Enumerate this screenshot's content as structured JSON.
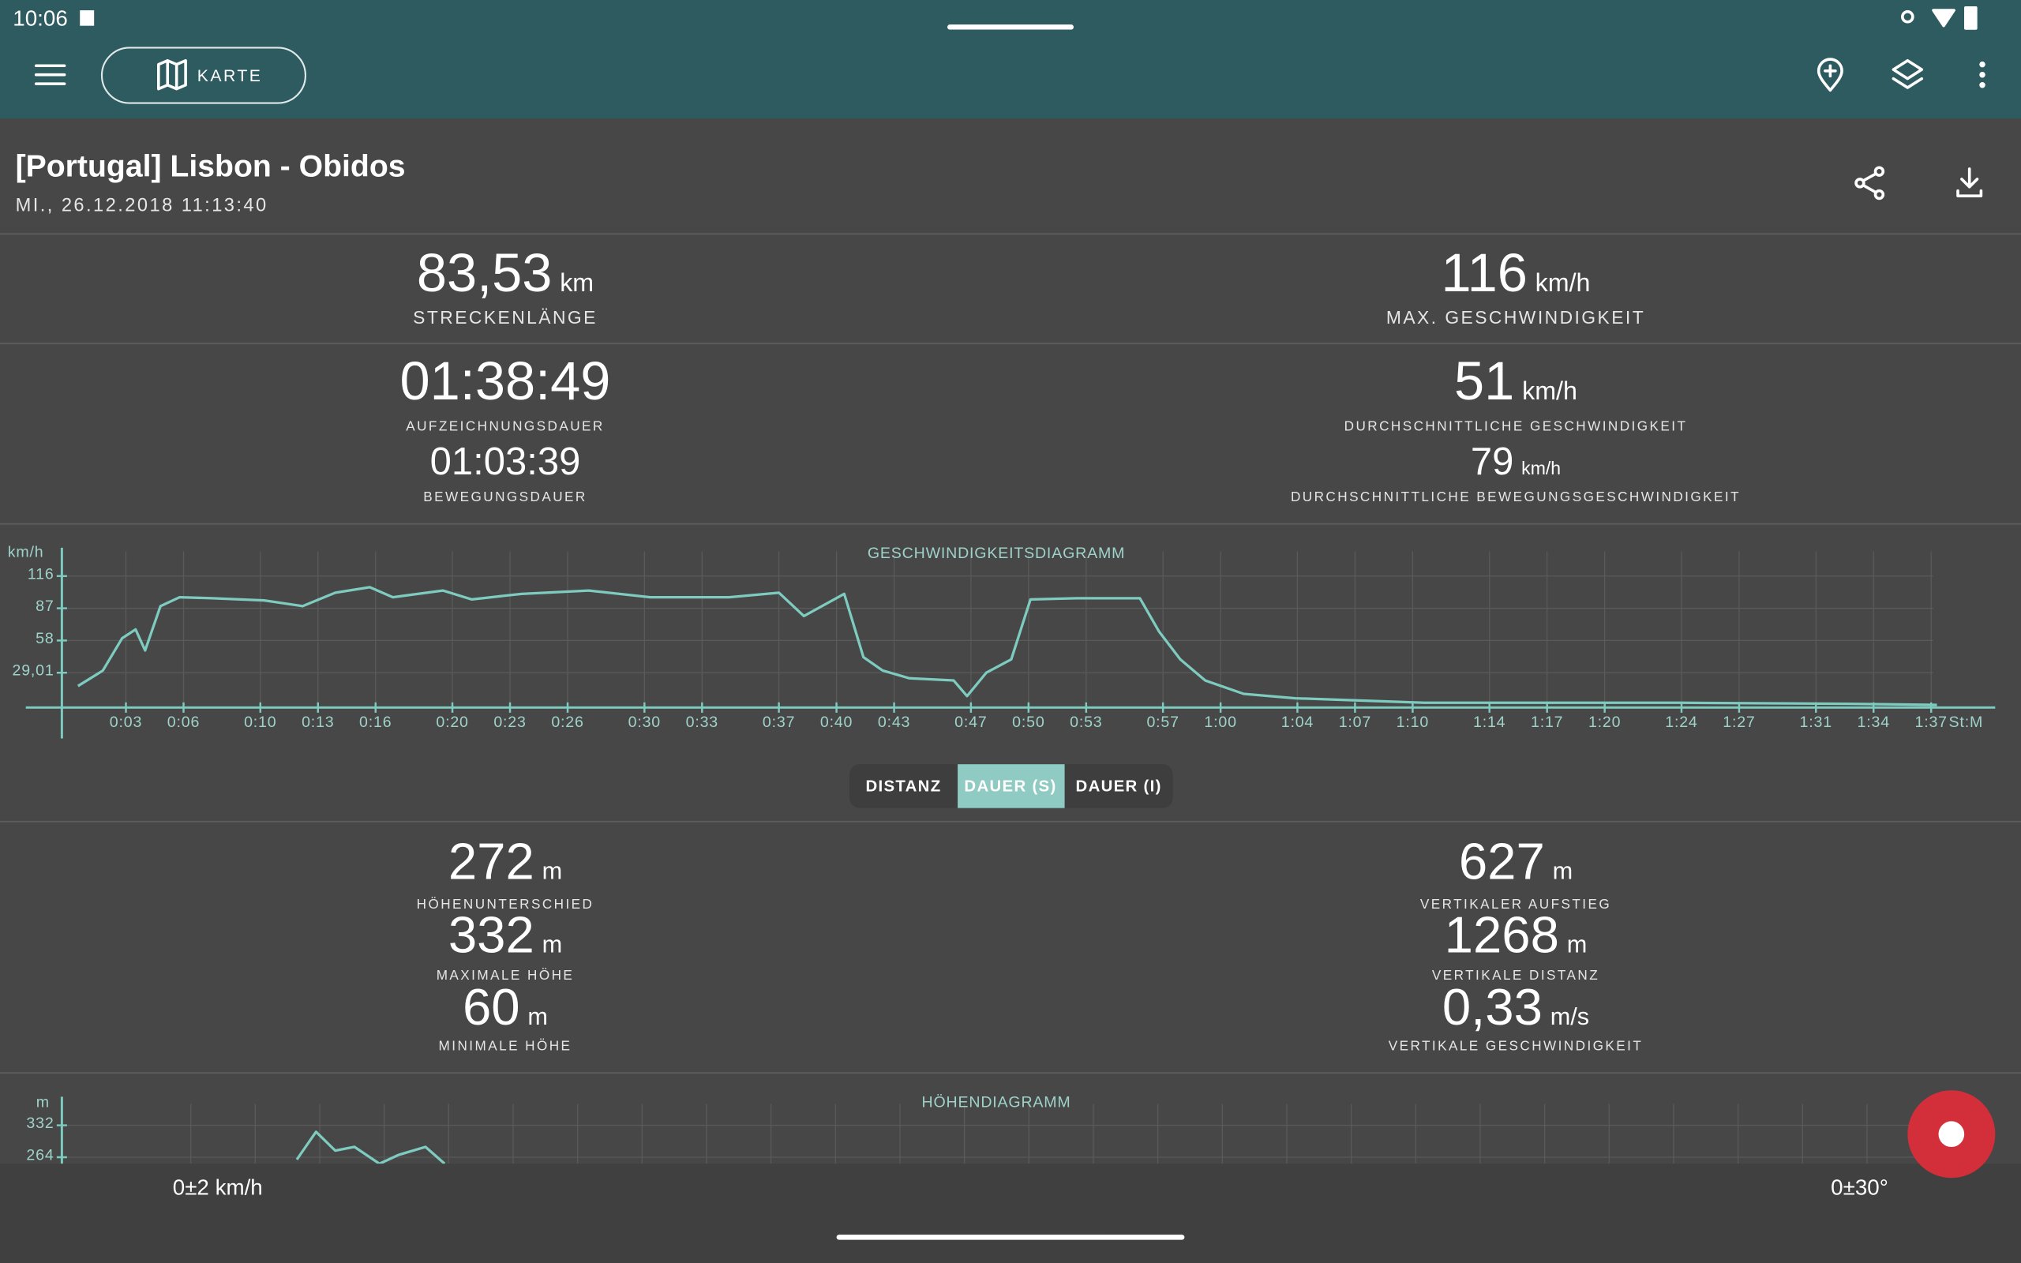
{
  "status_bar": {
    "time": "10:06"
  },
  "toolbar": {
    "map_button": "KARTE"
  },
  "track": {
    "title": "[Portugal] Lisbon - Obidos",
    "date": "MI., 26.12.2018 11:13:40"
  },
  "stats": [
    {
      "value": "83,53",
      "unit": "km",
      "label": "STRECKENLÄNGE"
    },
    {
      "value": "116",
      "unit": "km/h",
      "label": "MAX. GESCHWINDIGKEIT"
    },
    {
      "value": "01:38:49",
      "label": "AUFZEICHNUNGSDAUER"
    },
    {
      "value": "01:03:39",
      "label": "BEWEGUNGSDAUER"
    },
    {
      "value": "51",
      "unit": "km/h",
      "label": "DURCHSCHNITTLICHE GESCHWINDIGKEIT"
    },
    {
      "value": "79",
      "unit": "km/h",
      "label": "DURCHSCHNITTLICHE BEWEGUNGSGESCHWINDIGKEIT"
    }
  ],
  "segments": [
    "DISTANZ",
    "DAUER (S)",
    "DAUER (I)"
  ],
  "elevation_stats": [
    {
      "value": "272",
      "unit": "m",
      "label": "HÖHENUNTERSCHIED"
    },
    {
      "value": "332",
      "unit": "m",
      "label": "MAXIMALE HÖHE"
    },
    {
      "value": "60",
      "unit": "m",
      "label": "MINIMALE HÖHE"
    },
    {
      "value": "627",
      "unit": "m",
      "label": "VERTIKALER AUFSTIEG"
    },
    {
      "value": "1268",
      "unit": "m",
      "label": "VERTIKALE DISTANZ"
    },
    {
      "value": "0,33",
      "unit": "m/s",
      "label": "VERTIKALE GESCHWINDIGKEIT"
    }
  ],
  "chart_data": [
    {
      "type": "line",
      "title": "GESCHWINDIGKEITSDIAGRAMM",
      "y_unit": "km/h",
      "x_unit": "St:M",
      "color": "#7ecbc0",
      "grid": true,
      "x": [
        0.5,
        1.8,
        2.8,
        3.5,
        4,
        4.8,
        5.8,
        7.5,
        10.2,
        12.2,
        13.9,
        15.7,
        16.9,
        19.5,
        21,
        23.6,
        27.1,
        30.3,
        34.4,
        37,
        38.3,
        40.4,
        41.4,
        42.4,
        43.8,
        46.1,
        46.8,
        47.8,
        49.1,
        50.1,
        52.5,
        55.8,
        56.8,
        57.9,
        59.2,
        61.2,
        63.9,
        70.6,
        84,
        92.8,
        97.3
      ],
      "values": [
        17,
        31,
        60,
        68,
        49,
        89,
        97,
        96,
        94,
        89,
        101,
        106,
        97,
        103,
        95,
        100,
        103,
        97,
        97,
        101,
        80,
        100,
        43,
        31,
        24,
        22,
        8,
        29,
        41,
        95,
        96,
        96,
        66,
        41,
        22,
        10,
        6,
        2,
        2,
        1,
        0
      ],
      "xlim": [
        0,
        100
      ],
      "ylim": [
        0,
        138
      ],
      "yticks": [
        {
          "value": 29.01,
          "label": "29,01"
        },
        58,
        87,
        116
      ],
      "xticks": [
        {
          "value": 3,
          "label": "0:03"
        },
        {
          "value": 6,
          "label": "0:06"
        },
        {
          "value": 10,
          "label": "0:10"
        },
        {
          "value": 13,
          "label": "0:13"
        },
        {
          "value": 16,
          "label": "0:16"
        },
        {
          "value": 20,
          "label": "0:20"
        },
        {
          "value": 23,
          "label": "0:23"
        },
        {
          "value": 26,
          "label": "0:26"
        },
        {
          "value": 30,
          "label": "0:30"
        },
        {
          "value": 33,
          "label": "0:33"
        },
        {
          "value": 37,
          "label": "0:37"
        },
        {
          "value": 40,
          "label": "0:40"
        },
        {
          "value": 43,
          "label": "0:43"
        },
        {
          "value": 47,
          "label": "0:47"
        },
        {
          "value": 50,
          "label": "0:50"
        },
        {
          "value": 53,
          "label": "0:53"
        },
        {
          "value": 57,
          "label": "0:57"
        },
        {
          "value": 60,
          "label": "1:00"
        },
        {
          "value": 64,
          "label": "1:04"
        },
        {
          "value": 67,
          "label": "1:07"
        },
        {
          "value": 70,
          "label": "1:10"
        },
        {
          "value": 74,
          "label": "1:14"
        },
        {
          "value": 77,
          "label": "1:17"
        },
        {
          "value": 80,
          "label": "1:20"
        },
        {
          "value": 84,
          "label": "1:24"
        },
        {
          "value": 87,
          "label": "1:27"
        },
        {
          "value": 91,
          "label": "1:31"
        },
        {
          "value": 94,
          "label": "1:34"
        },
        {
          "value": 97,
          "label": "1:37"
        }
      ]
    },
    {
      "type": "line",
      "title": "HÖHENDIAGRAMM",
      "y_unit": "m",
      "color": "#7ecbc0",
      "grid": true,
      "x": [
        11.9,
        12.9,
        13.9,
        14.9,
        16.2,
        17.2,
        18.6,
        19.6
      ],
      "values": [
        259,
        318,
        278,
        286,
        250,
        269,
        286,
        250
      ],
      "xlim": [
        0,
        100
      ],
      "ylim": [
        250,
        350
      ],
      "yticks": [
        264,
        332
      ]
    }
  ],
  "bottom_bar": {
    "speed_accuracy": "0±2 km/h",
    "angle_accuracy": "0±30°"
  }
}
